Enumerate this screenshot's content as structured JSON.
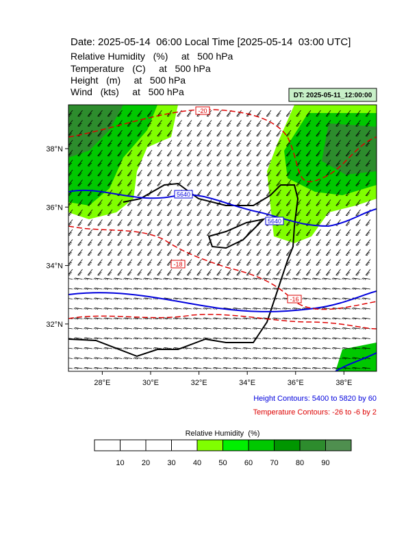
{
  "header": {
    "title": "Date: 2025-05-14  06:00 Local Time [2025-05-14  03:00 UTC]",
    "fields": [
      "Relative Humidity   (%)     at   500 hPa",
      "Temperature   (C)     at   500 hPa",
      "Height   (m)     at   500 hPa",
      "Wind   (kts)     at   500 hPa"
    ],
    "dt": "DT: 2025-05-11_12:00:00"
  },
  "map": {
    "xlim": [
      26.6,
      39.35
    ],
    "ylim": [
      30.38,
      39.5
    ],
    "xticks": [
      {
        "value": 28,
        "label": "28°E"
      },
      {
        "value": 30,
        "label": "30°E"
      },
      {
        "value": 32,
        "label": "32°E"
      },
      {
        "value": 34,
        "label": "34°E"
      },
      {
        "value": 36,
        "label": "36°E"
      },
      {
        "value": 38,
        "label": "38°E"
      }
    ],
    "yticks": [
      {
        "value": 38,
        "label": "38°N"
      },
      {
        "value": 36,
        "label": "36°N"
      },
      {
        "value": 34,
        "label": "34°N"
      },
      {
        "value": 32,
        "label": "32°N"
      }
    ],
    "contour_labels": [
      "-20",
      "5640",
      "5640",
      "-18",
      "-16"
    ]
  },
  "notes": [
    "Height Contours: 5400 to 5820 by 60",
    "Temperature Contours: -26 to -6 by 2"
  ],
  "colorbar": {
    "title": "Relative Humidity  (%)",
    "ticks": [
      10,
      20,
      30,
      40,
      50,
      60,
      70,
      80,
      90
    ],
    "colors": [
      "#ffffff",
      "#ffffff",
      "#ffffff",
      "#ffffff",
      "#80ff00",
      "#00f000",
      "#00c800",
      "#009600",
      "#2d8c2d",
      "#4f8f4f"
    ]
  }
}
